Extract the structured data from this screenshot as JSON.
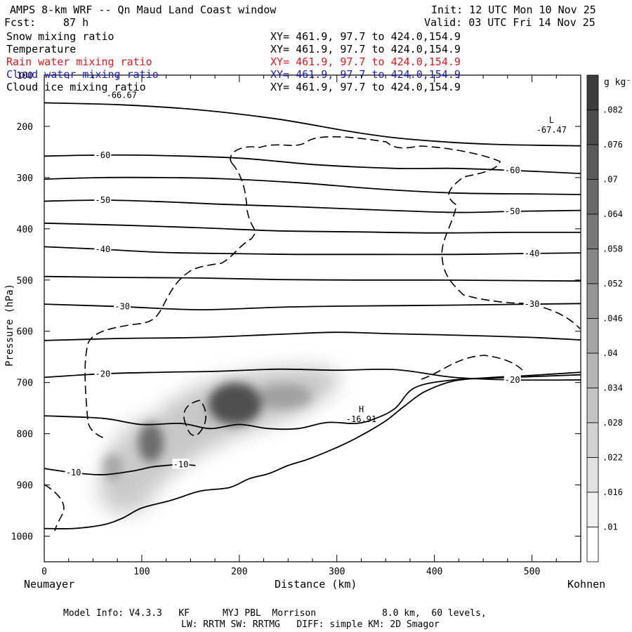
{
  "header": {
    "title": "AMPS 8-km WRF -- Qn Maud Land Coast window",
    "init": "Init: 12 UTC Mon 10 Nov 25",
    "fcst_label": "Fcst:",
    "fcst_value": "87 h",
    "valid": "Valid: 03 UTC Fri 14 Nov 25"
  },
  "fields": [
    {
      "name": "Snow mixing ratio",
      "xy": "XY= 461.9, 97.7 to 424.0,154.9",
      "color": "#000000"
    },
    {
      "name": "Temperature",
      "xy": "XY= 461.9, 97.7 to 424.0,154.9",
      "color": "#000000"
    },
    {
      "name": "Rain water mixing ratio",
      "xy": "XY= 461.9, 97.7 to 424.0,154.9",
      "color": "#e8141c"
    },
    {
      "name": "Cloud water mixing ratio",
      "xy": "XY= 461.9, 97.7 to 424.0,154.9",
      "color": "#1c1cc8"
    },
    {
      "name": "Cloud ice mixing ratio",
      "xy": "XY= 461.9, 97.7 to 424.0,154.9",
      "color": "#000000"
    }
  ],
  "axes": {
    "ylabel": "Pressure (hPa)",
    "xlabel": "Distance (km)",
    "left_station": "Neumayer",
    "right_station": "Kohnen"
  },
  "colorbar": {
    "unit": "g kg⁻¹",
    "labels": [
      ".082",
      ".076",
      ".07",
      ".064",
      ".058",
      ".052",
      ".046",
      ".04",
      ".034",
      ".028",
      ".022",
      ".016",
      ".01"
    ]
  },
  "footer": {
    "line1": "Model Info: V4.3.3   KF      MYJ PBL  Morrison            8.0 km,  60 levels,",
    "line2": "LW: RRTM SW: RRTMG   DIFF: simple KM: 2D Smagor"
  },
  "chart_data": {
    "type": "contour",
    "title": "AMPS 8-km WRF -- Qn Maud Land Coast window",
    "xlabel": "Distance (km)",
    "ylabel": "Pressure (hPa)",
    "xlim": [
      0,
      550
    ],
    "ylim": [
      1050,
      100
    ],
    "xticks": [
      0,
      100,
      200,
      300,
      400,
      500
    ],
    "yticks": [
      100,
      200,
      300,
      400,
      500,
      600,
      700,
      800,
      900,
      1000
    ],
    "isotherms": [
      {
        "label": "-10",
        "points": [
          [
            0,
            868
          ],
          [
            30,
            876
          ],
          [
            60,
            880
          ],
          [
            90,
            873
          ],
          [
            110,
            865
          ],
          [
            125,
            862
          ],
          [
            140,
            860
          ],
          [
            155,
            862
          ]
        ]
      },
      {
        "label": "",
        "points": [
          [
            0,
            765
          ],
          [
            60,
            770
          ],
          [
            100,
            782
          ],
          [
            140,
            780
          ],
          [
            170,
            790
          ],
          [
            200,
            782
          ],
          [
            230,
            790
          ],
          [
            260,
            790
          ],
          [
            290,
            778
          ],
          [
            320,
            780
          ],
          [
            340,
            770
          ],
          [
            360,
            750
          ],
          [
            380,
            710
          ],
          [
            420,
            695
          ],
          [
            480,
            690
          ],
          [
            550,
            685
          ]
        ]
      },
      {
        "label": "-20",
        "points": [
          [
            0,
            690
          ],
          [
            60,
            683
          ],
          [
            120,
            680
          ],
          [
            180,
            678
          ],
          [
            240,
            674
          ],
          [
            300,
            676
          ],
          [
            360,
            675
          ],
          [
            420,
            690
          ],
          [
            480,
            695
          ],
          [
            550,
            695
          ]
        ]
      },
      {
        "label": "",
        "points": [
          [
            0,
            618
          ],
          [
            80,
            614
          ],
          [
            160,
            612
          ],
          [
            240,
            606
          ],
          [
            300,
            602
          ],
          [
            360,
            605
          ],
          [
            430,
            608
          ],
          [
            500,
            612
          ],
          [
            550,
            617
          ]
        ]
      },
      {
        "label": "-30",
        "points": [
          [
            0,
            547
          ],
          [
            80,
            552
          ],
          [
            160,
            558
          ],
          [
            240,
            553
          ],
          [
            300,
            551
          ],
          [
            360,
            550
          ],
          [
            420,
            549
          ],
          [
            500,
            547
          ],
          [
            550,
            546
          ]
        ]
      },
      {
        "label": "",
        "points": [
          [
            0,
            493
          ],
          [
            80,
            495
          ],
          [
            160,
            496
          ],
          [
            240,
            499
          ],
          [
            320,
            500
          ],
          [
            400,
            500
          ],
          [
            480,
            501
          ],
          [
            550,
            502
          ]
        ]
      },
      {
        "label": "-40",
        "points": [
          [
            0,
            435
          ],
          [
            60,
            440
          ],
          [
            120,
            446
          ],
          [
            180,
            448
          ],
          [
            260,
            450
          ],
          [
            340,
            450
          ],
          [
            420,
            450
          ],
          [
            500,
            448
          ],
          [
            550,
            447
          ]
        ]
      },
      {
        "label": "",
        "points": [
          [
            0,
            389
          ],
          [
            80,
            393
          ],
          [
            160,
            398
          ],
          [
            240,
            404
          ],
          [
            320,
            406
          ],
          [
            400,
            408
          ],
          [
            480,
            407
          ],
          [
            550,
            407
          ]
        ]
      },
      {
        "label": "-50",
        "points": [
          [
            0,
            346
          ],
          [
            60,
            344
          ],
          [
            120,
            347
          ],
          [
            180,
            352
          ],
          [
            260,
            357
          ],
          [
            340,
            363
          ],
          [
            420,
            368
          ],
          [
            480,
            366
          ],
          [
            550,
            364
          ]
        ]
      },
      {
        "label": "",
        "points": [
          [
            0,
            303
          ],
          [
            60,
            300
          ],
          [
            120,
            300
          ],
          [
            180,
            302
          ],
          [
            260,
            310
          ],
          [
            340,
            322
          ],
          [
            420,
            330
          ],
          [
            500,
            332
          ],
          [
            550,
            333
          ]
        ]
      },
      {
        "label": "-60",
        "points": [
          [
            0,
            258
          ],
          [
            60,
            256
          ],
          [
            120,
            257
          ],
          [
            200,
            262
          ],
          [
            280,
            275
          ],
          [
            360,
            282
          ],
          [
            420,
            282
          ],
          [
            480,
            286
          ],
          [
            550,
            292
          ]
        ]
      },
      {
        "label": "",
        "points": [
          [
            0,
            154
          ],
          [
            80,
            158
          ],
          [
            160,
            168
          ],
          [
            240,
            186
          ],
          [
            320,
            212
          ],
          [
            380,
            226
          ],
          [
            460,
            235
          ],
          [
            550,
            238
          ]
        ]
      }
    ],
    "terrain": [
      [
        0,
        985
      ],
      [
        30,
        985
      ],
      [
        60,
        978
      ],
      [
        80,
        965
      ],
      [
        100,
        945
      ],
      [
        130,
        930
      ],
      [
        160,
        912
      ],
      [
        190,
        905
      ],
      [
        210,
        888
      ],
      [
        230,
        878
      ],
      [
        250,
        862
      ],
      [
        270,
        850
      ],
      [
        290,
        835
      ],
      [
        310,
        818
      ],
      [
        330,
        798
      ],
      [
        350,
        775
      ],
      [
        370,
        745
      ],
      [
        390,
        718
      ],
      [
        420,
        697
      ],
      [
        460,
        690
      ],
      [
        500,
        686
      ],
      [
        550,
        680
      ]
    ],
    "extrema": [
      {
        "type": "low",
        "label": "L",
        "value": "-67.47",
        "x": 520,
        "y": 215
      },
      {
        "type": "high",
        "label": "H",
        "value": "-16.91",
        "x": 325,
        "y": 780
      }
    ],
    "extra_labels": [
      {
        "text": "-66.67",
        "x": 65,
        "y": 128
      }
    ],
    "snow_maxima": [
      {
        "x": 195,
        "y": 750,
        "value": 0.085
      },
      {
        "x": 105,
        "y": 820,
        "value": 0.06
      },
      {
        "x": 65,
        "y": 880,
        "value": 0.03
      }
    ],
    "snow_levels": [
      0.01,
      0.016,
      0.022,
      0.028,
      0.034,
      0.04,
      0.046,
      0.052,
      0.058,
      0.064,
      0.07,
      0.076,
      0.082
    ]
  }
}
